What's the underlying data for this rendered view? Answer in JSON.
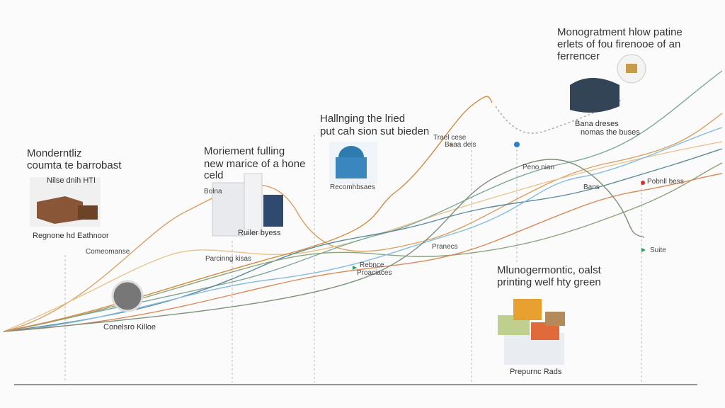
{
  "callouts": [
    {
      "lines": [
        "Monogratment hlow patine",
        "erlets of fou firenooe of an",
        "ferrencer"
      ]
    },
    {
      "lines": [
        "Bana dreses",
        "nomas the buses"
      ]
    },
    {
      "lines": [
        "Hallnging the lried",
        "put cah sion sut bieden"
      ]
    },
    {
      "lines": [
        "Trael cese",
        "Baaa deis"
      ]
    },
    {
      "lines": [
        "Peno nian"
      ]
    },
    {
      "lines": [
        "Bans"
      ]
    },
    {
      "lines": [
        "Pobnll bess"
      ]
    },
    {
      "lines": [
        "Suite"
      ]
    },
    {
      "lines": [
        "Monderntliz",
        "coumta te barrobast"
      ]
    },
    {
      "lines": [
        "Nilse dnih HTI"
      ]
    },
    {
      "lines": [
        "Regnone hd Eathnoor"
      ]
    },
    {
      "lines": [
        "Moriement fulling",
        "new marice of a hone",
        "celd"
      ]
    },
    {
      "lines": [
        "Bolna"
      ]
    },
    {
      "lines": [
        "Ruiler byess"
      ]
    },
    {
      "lines": [
        "Recomhbsaes"
      ]
    },
    {
      "lines": [
        "Comeomanse"
      ]
    },
    {
      "lines": [
        "Parcinng kisas"
      ]
    },
    {
      "lines": [
        "Rebnce",
        "Proaciaces"
      ]
    },
    {
      "lines": [
        "Pranecs"
      ]
    },
    {
      "lines": [
        "Conelsro Killoe"
      ]
    },
    {
      "lines": [
        "Mlunogermontic, oalst",
        "printing welf hty green"
      ]
    },
    {
      "lines": [
        "Prepurnc Rads"
      ]
    }
  ]
}
